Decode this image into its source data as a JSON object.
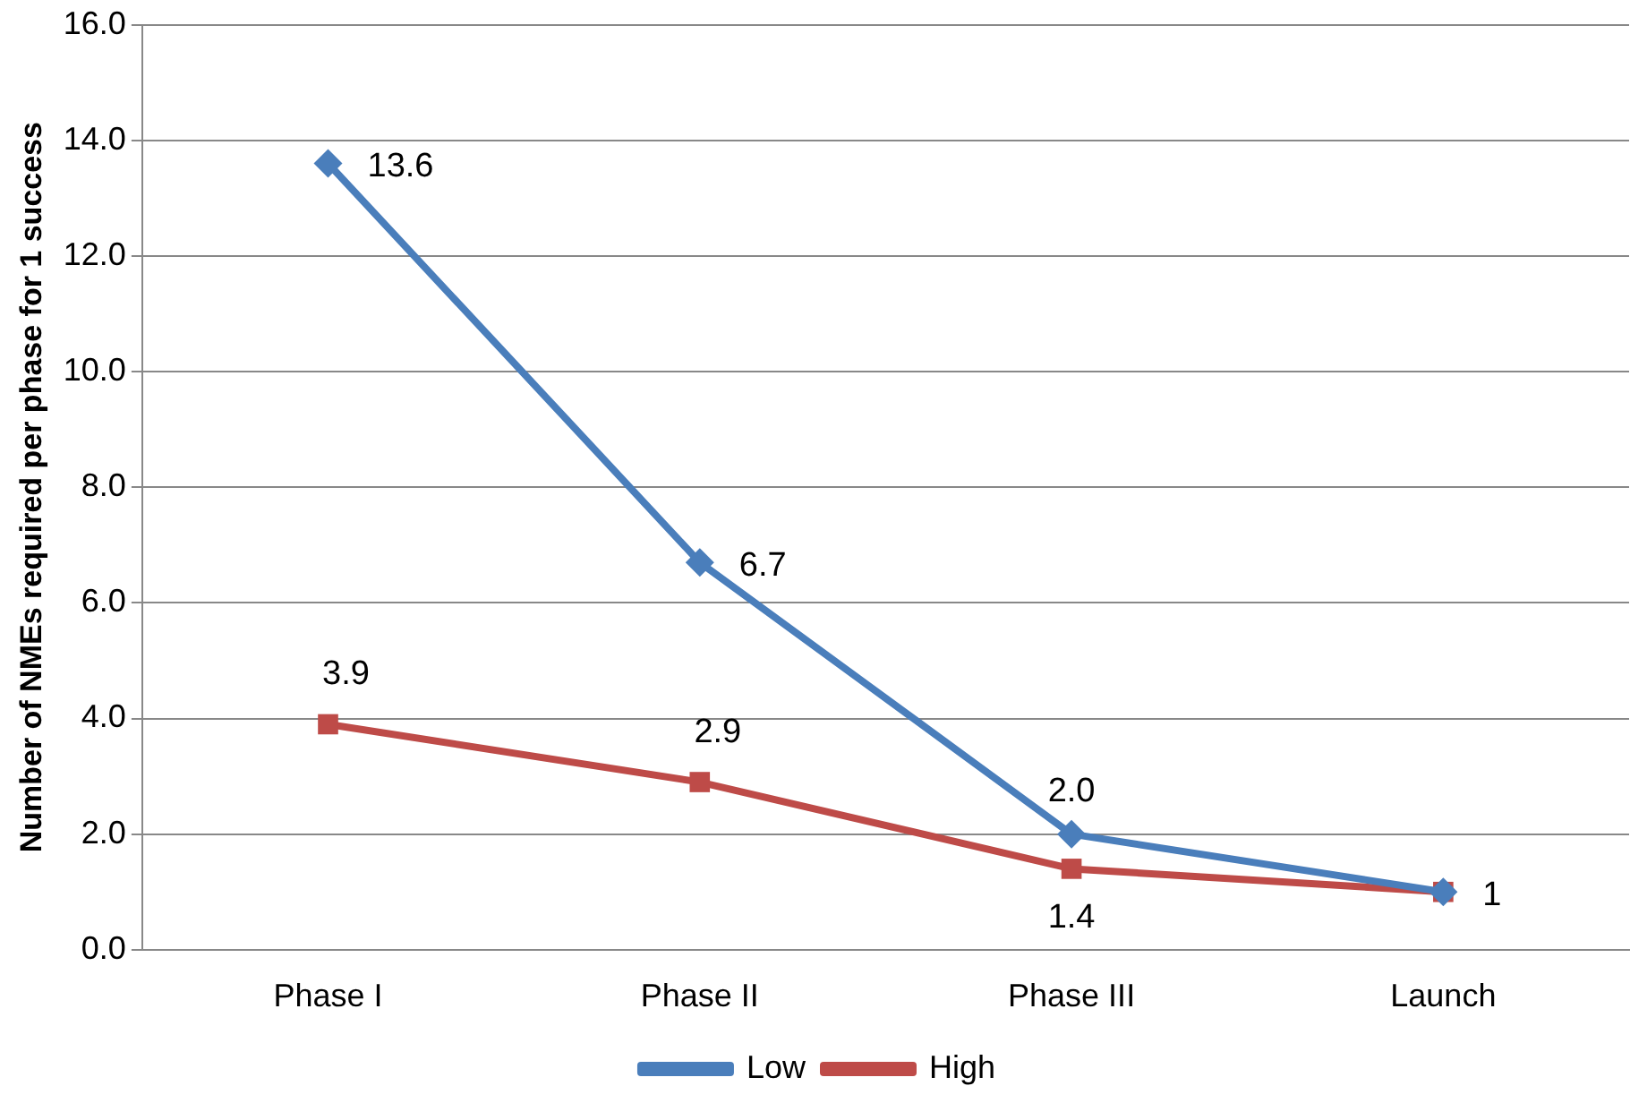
{
  "chart_data": {
    "type": "line",
    "ylabel": "Number of NMEs required per phase for 1 success",
    "categories": [
      "Phase I",
      "Phase II",
      "Phase III",
      "Launch"
    ],
    "series": [
      {
        "name": "Low",
        "color": "#4a7ebb",
        "marker": "diamond",
        "values": [
          13.6,
          6.7,
          2.0,
          1
        ],
        "value_labels": [
          "13.6",
          "6.7",
          "2.0",
          null
        ]
      },
      {
        "name": "High",
        "color": "#be4b48",
        "marker": "square",
        "values": [
          3.9,
          2.9,
          1.4,
          1
        ],
        "value_labels": [
          "3.9",
          "2.9",
          "1.4",
          "1"
        ]
      }
    ],
    "ylim": [
      0,
      16
    ],
    "yticks": [
      {
        "value": 0,
        "label": "0.0"
      },
      {
        "value": 2,
        "label": "2.0"
      },
      {
        "value": 4,
        "label": "4.0"
      },
      {
        "value": 6,
        "label": "6.0"
      },
      {
        "value": 8,
        "label": "8.0"
      },
      {
        "value": 10,
        "label": "10.0"
      },
      {
        "value": 12,
        "label": "12.0"
      },
      {
        "value": 14,
        "label": "14.0"
      },
      {
        "value": 16,
        "label": "16.0"
      }
    ],
    "grid": "y",
    "legend": "bottom",
    "line_style": "solid"
  }
}
